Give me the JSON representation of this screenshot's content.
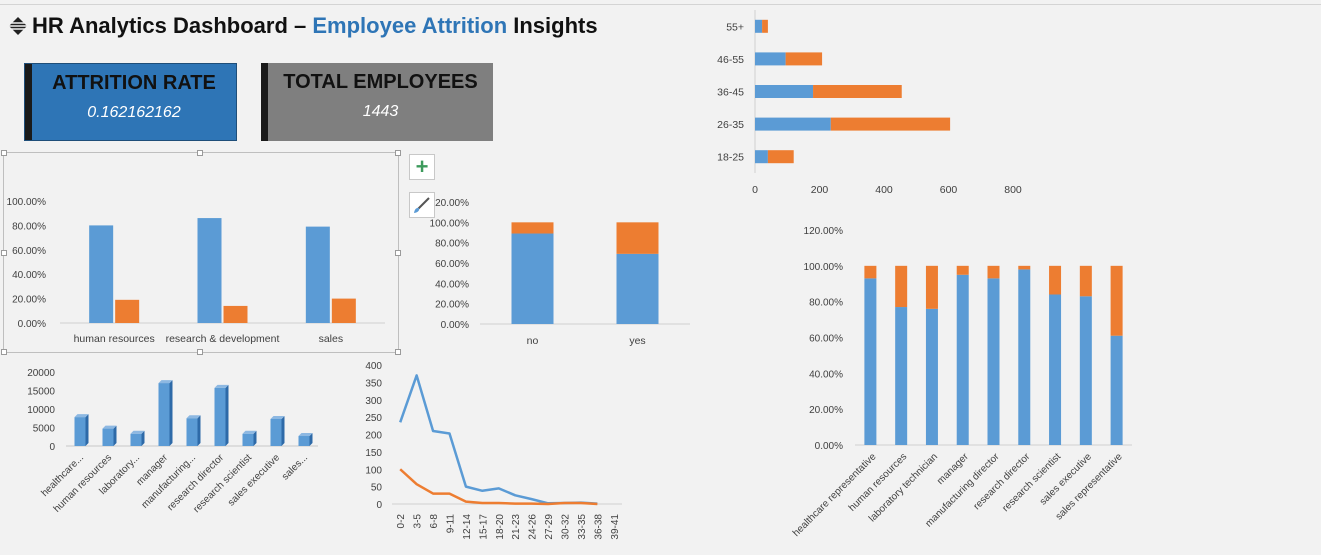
{
  "dashboard": {
    "title_prefix": "HR Analytics Dashboard – ",
    "title_accent": "Employee Attrition",
    "title_suffix": " Insights",
    "title_icon": "grid-icon"
  },
  "kpis": {
    "attrition_rate_label": "ATTRITION RATE",
    "attrition_rate_value": "0.162162162",
    "total_employees_label": "TOTAL EMPLOYEES",
    "total_employees_value": "1443"
  },
  "tools": {
    "add_element_icon": "plus-icon",
    "chart_style_icon": "brush-icon"
  },
  "colors": {
    "blue": "#5b9bd5",
    "orange": "#ed7d31",
    "accent": "#2e75b6",
    "grey_card": "#7f7f7f"
  },
  "chart_data": [
    {
      "id": "dept",
      "type": "bar",
      "categories": [
        "human resources",
        "research & development",
        "sales"
      ],
      "series": [
        {
          "values": [
            0.8,
            0.86,
            0.79
          ]
        },
        {
          "values": [
            0.19,
            0.14,
            0.2
          ]
        }
      ],
      "y_ticks": [
        "0.00%",
        "20.00%",
        "40.00%",
        "60.00%",
        "80.00%",
        "100.00%"
      ],
      "ylim": [
        0,
        1
      ]
    },
    {
      "id": "overtime",
      "type": "bar",
      "stacked": true,
      "categories": [
        "no",
        "yes"
      ],
      "series": [
        {
          "values": [
            0.89,
            0.69
          ]
        },
        {
          "values": [
            0.11,
            0.31
          ]
        }
      ],
      "y_ticks": [
        "0.00%",
        "20.00%",
        "40.00%",
        "60.00%",
        "80.00%",
        "100.00%",
        "120.00%"
      ],
      "ylim": [
        0,
        1.2
      ]
    },
    {
      "id": "age",
      "type": "bar",
      "orientation": "horizontal",
      "stacked": true,
      "categories": [
        "18-25",
        "26-35",
        "36-45",
        "46-55",
        "55+"
      ],
      "series": [
        {
          "values": [
            40,
            235,
            180,
            95,
            22
          ]
        },
        {
          "values": [
            80,
            370,
            275,
            113,
            18
          ]
        }
      ],
      "x_ticks": [
        "0",
        "200",
        "400",
        "600",
        "800"
      ],
      "xlim": [
        0,
        800
      ]
    },
    {
      "id": "role_stack",
      "type": "bar",
      "stacked": true,
      "categories": [
        "healthcare representative",
        "human resources",
        "laboratory technician",
        "manager",
        "manufacturing director",
        "research director",
        "research scientist",
        "sales executive",
        "sales representative"
      ],
      "series": [
        {
          "values": [
            0.93,
            0.77,
            0.76,
            0.95,
            0.93,
            0.98,
            0.84,
            0.83,
            0.61
          ]
        },
        {
          "values": [
            0.07,
            0.23,
            0.24,
            0.05,
            0.07,
            0.02,
            0.16,
            0.17,
            0.39
          ]
        }
      ],
      "y_ticks": [
        "0.00%",
        "20.00%",
        "40.00%",
        "60.00%",
        "80.00%",
        "100.00%",
        "120.00%"
      ],
      "ylim": [
        0,
        1.2
      ]
    },
    {
      "id": "role_income",
      "type": "bar",
      "categories": [
        "healthcare...",
        "human resources",
        "laboratory...",
        "manager",
        "manufacturing...",
        "research director",
        "research scientist",
        "sales executive",
        "sales..."
      ],
      "values": [
        7800,
        4700,
        3300,
        17000,
        7500,
        15700,
        3300,
        7300,
        2700
      ],
      "y_ticks": [
        "0",
        "5000",
        "10000",
        "15000",
        "20000"
      ],
      "ylim": [
        0,
        20000
      ]
    },
    {
      "id": "years_line",
      "type": "line",
      "categories": [
        "0-2",
        "3-5",
        "6-8",
        "9-11",
        "12-14",
        "15-17",
        "18-20",
        "21-23",
        "24-26",
        "27-29",
        "30-32",
        "33-35",
        "36-38",
        "39-41"
      ],
      "series": [
        {
          "values": [
            235,
            370,
            210,
            203,
            50,
            38,
            45,
            25,
            14,
            2,
            3,
            4,
            1,
            null
          ]
        },
        {
          "values": [
            100,
            57,
            30,
            30,
            7,
            3,
            3,
            1,
            1,
            0,
            3,
            3,
            0,
            null
          ]
        }
      ],
      "y_ticks": [
        "0",
        "50",
        "100",
        "150",
        "200",
        "250",
        "300",
        "350",
        "400"
      ],
      "ylim": [
        0,
        400
      ]
    }
  ]
}
